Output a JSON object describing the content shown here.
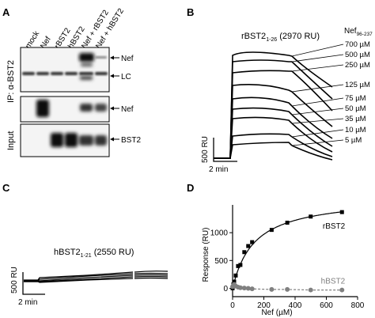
{
  "panels": {
    "A": {
      "label": "A",
      "lanes": [
        "mock",
        "Nef",
        "rBST2",
        "hBST2",
        "Nef + rBST2",
        "Nef + hBST2"
      ],
      "ip_label": "IP: α-BST2",
      "input_label": "Input",
      "band_nef": "Nef",
      "band_lc": "LC",
      "band_nef2": "Nef",
      "band_bst2": "BST2"
    },
    "B": {
      "label": "B",
      "title_main": "rBST2",
      "title_sub": "1-26",
      "title_tail": " (2970 RU)",
      "legend_head_main": "Nef",
      "legend_head_sub": "96-237",
      "concentrations": [
        "700 µM",
        "500 µM",
        "250 µM",
        "125 µM",
        "75 µM",
        "50 µM",
        "35 µM",
        "10 µM",
        "5 µM"
      ],
      "scale_y": "500 RU",
      "scale_x": "2 min"
    },
    "C": {
      "label": "C",
      "title_main": "hBST2",
      "title_sub": "1-21",
      "title_tail": " (2550 RU)",
      "scale_y": "500 RU",
      "scale_x": "2 min"
    },
    "D": {
      "label": "D",
      "chart_data": {
        "type": "scatter",
        "xlabel": "Nef (µM)",
        "ylabel": "Response (RU)",
        "xlim": [
          0,
          800
        ],
        "ylim": [
          -150,
          1500
        ],
        "xticks": [
          0,
          200,
          400,
          600,
          800
        ],
        "yticks": [
          0,
          500,
          1000
        ],
        "series": [
          {
            "name": "rBST2",
            "color": "#000000",
            "marker": "square",
            "fit": "solid",
            "x": [
              0,
              5,
              10,
              20,
              35,
              50,
              75,
              100,
              125,
              250,
              350,
              500,
              700
            ],
            "y": [
              0,
              70,
              120,
              230,
              400,
              420,
              650,
              760,
              830,
              1050,
              1180,
              1290,
              1370
            ]
          },
          {
            "name": "hBST2",
            "color": "#808080",
            "marker": "circle",
            "fit": "dashed",
            "x": [
              0,
              5,
              10,
              20,
              35,
              50,
              75,
              100,
              125,
              250,
              350,
              500,
              700
            ],
            "y": [
              30,
              50,
              70,
              40,
              20,
              10,
              5,
              0,
              -10,
              -20,
              -20,
              -30,
              -30
            ]
          }
        ]
      }
    }
  }
}
